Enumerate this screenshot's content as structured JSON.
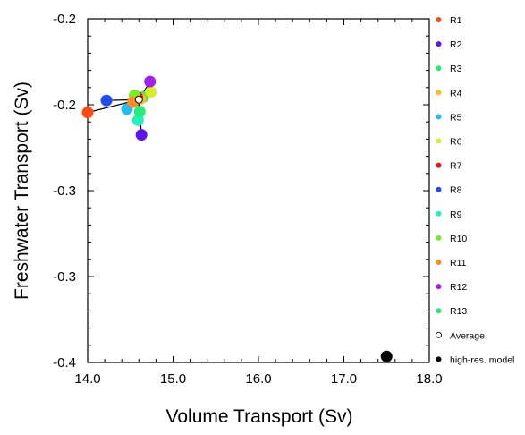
{
  "chart_data": {
    "type": "scatter",
    "title": "",
    "xlabel": "Volume Transport (Sv)",
    "ylabel": "Freshwater Transport (Sv)",
    "xlim": [
      14.0,
      18.0
    ],
    "ylim": [
      -0.4,
      -0.2
    ],
    "x_ticks": [
      14.0,
      15.0,
      16.0,
      17.0,
      18.0
    ],
    "x_tick_labels": [
      "14.0",
      "15.0",
      "16.0",
      "17.0",
      "18.0"
    ],
    "y_ticks": [
      -0.2,
      -0.25,
      -0.3,
      -0.35,
      -0.4
    ],
    "y_tick_labels": [
      "-0.2",
      "-0.2",
      "-0.3",
      "-0.3",
      "-0.4"
    ],
    "grid": false,
    "legend_position": "right",
    "series": [
      {
        "name": "R1",
        "color": "#ff4a12",
        "x": [
          14.0
        ],
        "y": [
          -0.2545
        ]
      },
      {
        "name": "R2",
        "color": "#5e16f0",
        "x": [
          14.63
        ],
        "y": [
          -0.2675
        ]
      },
      {
        "name": "R3",
        "color": "#22ee66",
        "x": [
          14.65
        ],
        "y": [
          -0.2455
        ]
      },
      {
        "name": "R4",
        "color": "#ffbb22",
        "x": [
          14.62
        ],
        "y": [
          -0.2465
        ]
      },
      {
        "name": "R5",
        "color": "#22bbf6",
        "x": [
          14.46
        ],
        "y": [
          -0.2525
        ]
      },
      {
        "name": "R6",
        "color": "#d6f024",
        "x": [
          14.74
        ],
        "y": [
          -0.2425
        ]
      },
      {
        "name": "R7",
        "color": "#ee1111",
        "x": [
          14.58
        ],
        "y": [
          -0.2455
        ]
      },
      {
        "name": "R8",
        "color": "#1f4ef0",
        "x": [
          14.22
        ],
        "y": [
          -0.2475
        ]
      },
      {
        "name": "R9",
        "color": "#22f0c0",
        "x": [
          14.59
        ],
        "y": [
          -0.259
        ]
      },
      {
        "name": "R10",
        "color": "#77ee22",
        "x": [
          14.55
        ],
        "y": [
          -0.2445
        ]
      },
      {
        "name": "R11",
        "color": "#ff8c1e",
        "x": [
          14.53
        ],
        "y": [
          -0.2485
        ]
      },
      {
        "name": "R12",
        "color": "#a31ef0",
        "x": [
          14.73
        ],
        "y": [
          -0.2365
        ]
      },
      {
        "name": "R13",
        "color": "#22ee7a",
        "x": [
          14.61
        ],
        "y": [
          -0.254
        ]
      }
    ],
    "average": {
      "name": "Average",
      "x": [
        14.6
      ],
      "y": [
        -0.247
      ]
    },
    "high_res_model": {
      "name": "high-res. model",
      "color": "#000000",
      "x": [
        17.5
      ],
      "y": [
        -0.3965
      ]
    }
  }
}
